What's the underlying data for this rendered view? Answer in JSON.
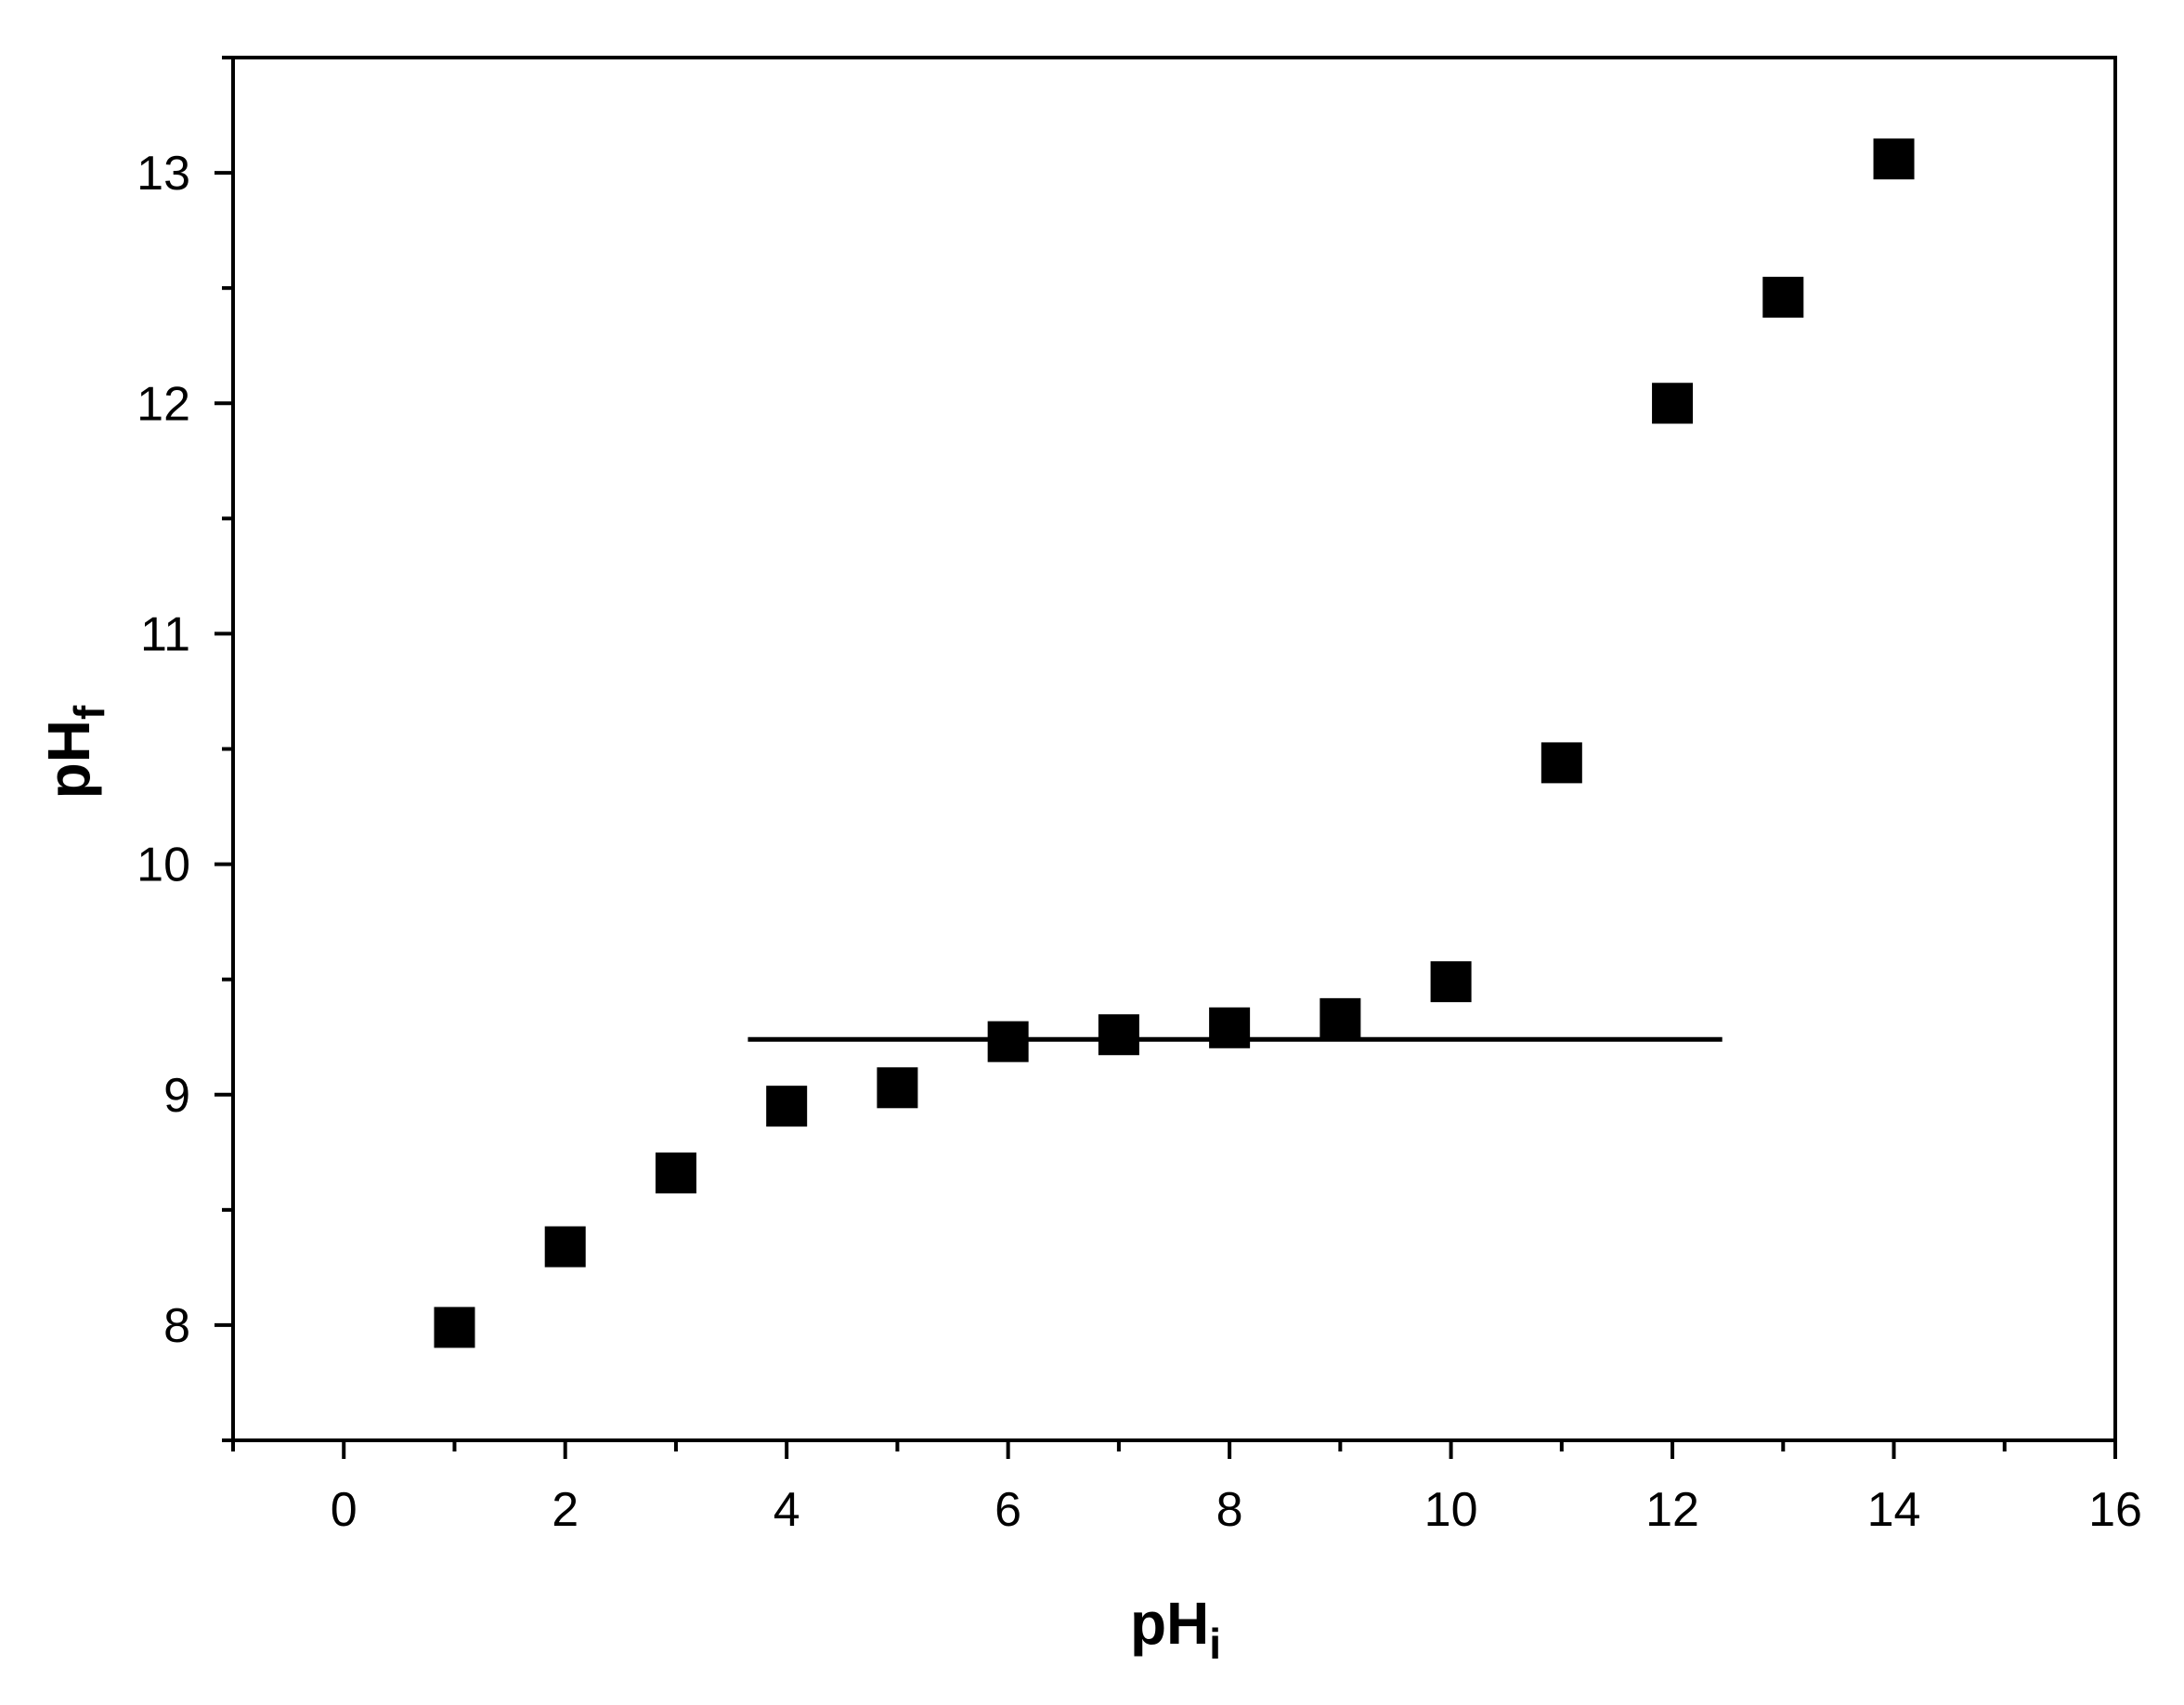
{
  "chart_data": {
    "type": "scatter",
    "xlabel": {
      "main": "pH",
      "sub": "i"
    },
    "ylabel": {
      "main": "pH",
      "sub": "f"
    },
    "xlim": [
      -1,
      16
    ],
    "ylim": [
      7.5,
      13.5
    ],
    "x_ticks": [
      0,
      2,
      4,
      6,
      8,
      10,
      12,
      14,
      16
    ],
    "x_tick_labels": [
      "0",
      "2",
      "4",
      "6",
      "8",
      "10",
      "12",
      "14",
      "16"
    ],
    "x_minor_ticks": [
      -1,
      1,
      3,
      5,
      7,
      9,
      11,
      13,
      15
    ],
    "y_ticks": [
      8,
      9,
      10,
      11,
      12,
      13
    ],
    "y_tick_labels": [
      "8",
      "9",
      "10",
      "11",
      "12",
      "13"
    ],
    "y_minor_ticks": [
      7.5,
      8.5,
      9.5,
      10.5,
      11.5,
      12.5,
      13.5
    ],
    "grid": false,
    "legend": "none",
    "series": [
      {
        "marker": "square",
        "color": "#000000",
        "x": [
          1,
          2,
          3,
          4,
          5,
          6,
          7,
          8,
          9,
          10,
          11,
          12,
          13,
          14
        ],
        "y": [
          7.99,
          8.34,
          8.66,
          8.95,
          9.03,
          9.23,
          9.26,
          9.29,
          9.33,
          9.49,
          10.44,
          12.0,
          12.46,
          13.06
        ]
      }
    ],
    "reference_lines": [
      {
        "type": "horizontal",
        "y": 9.24,
        "x_from": 3.65,
        "x_to": 12.45,
        "color": "#000000"
      }
    ]
  }
}
